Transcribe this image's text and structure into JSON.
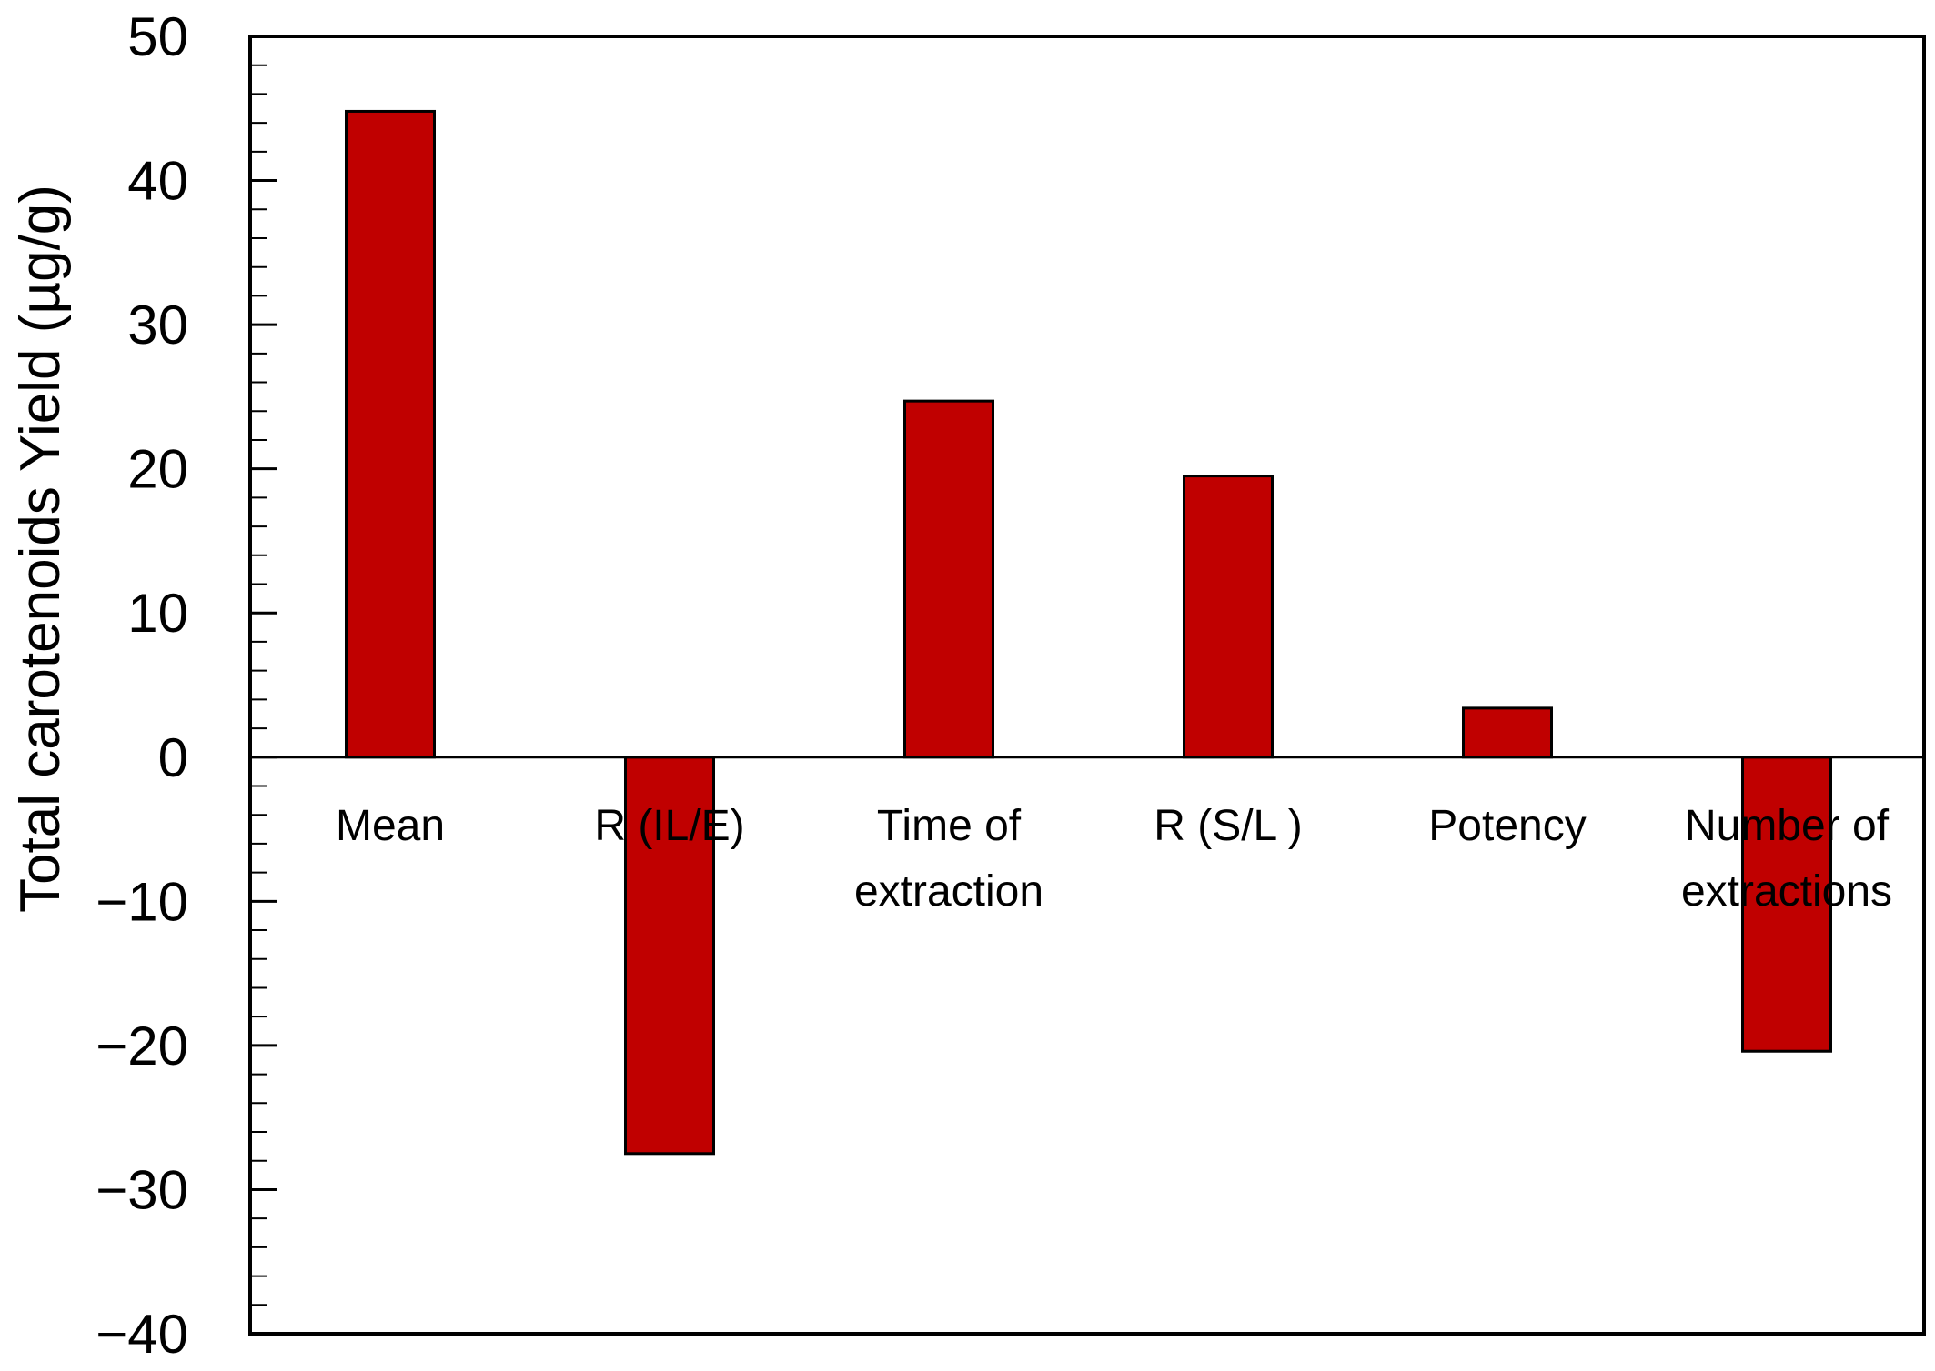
{
  "chart_data": {
    "type": "bar",
    "title": "",
    "xlabel": "",
    "ylabel": "Total carotenoids Yield (µg/g)",
    "ylim": [
      -40,
      50
    ],
    "yticks": [
      50,
      40,
      30,
      20,
      10,
      0,
      -10,
      -20,
      -30,
      -40
    ],
    "ytick_labels": [
      "50",
      "40",
      "30",
      "20",
      "10",
      "0",
      "−10",
      "−20",
      "−30",
      "−40"
    ],
    "y_minor_step": 2,
    "grid": false,
    "legend": "none",
    "categories": [
      [
        "Mean"
      ],
      [
        "R (IL/E)"
      ],
      [
        "Time of",
        "extraction"
      ],
      [
        "R (S/L )"
      ],
      [
        "Potency"
      ],
      [
        "Number of",
        "extractions"
      ]
    ],
    "values": [
      44.8,
      -27.5,
      24.7,
      19.5,
      3.4,
      -20.4
    ],
    "bar_color": "#C00000",
    "bar_edge_color": "#000000"
  }
}
